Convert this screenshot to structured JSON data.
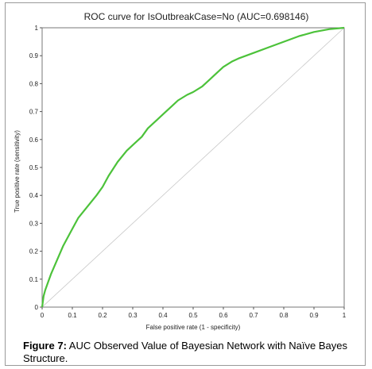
{
  "chart_data": {
    "type": "line",
    "title": "ROC curve for IsOutbreakCase=No (AUC=0.698146)",
    "xlabel": "False positive rate (1 - specificity)",
    "ylabel": "True positive rate (sensitivity)",
    "xlim": [
      0,
      1
    ],
    "ylim": [
      0,
      1
    ],
    "x_ticks": [
      "0",
      "0.1",
      "0.2",
      "0.3",
      "0.4",
      "0.5",
      "0.6",
      "0.7",
      "0.8",
      "0.9",
      "1"
    ],
    "y_ticks": [
      "0",
      "0.1",
      "0.2",
      "0.3",
      "0.4",
      "0.5",
      "0.6",
      "0.7",
      "0.8",
      "0.9",
      "1"
    ],
    "grid": false,
    "legend": "none",
    "series": [
      {
        "color": "#4cc23a",
        "x": [
          0,
          0.005,
          0.01,
          0.02,
          0.03,
          0.05,
          0.07,
          0.1,
          0.12,
          0.15,
          0.18,
          0.2,
          0.22,
          0.25,
          0.28,
          0.3,
          0.33,
          0.35,
          0.38,
          0.4,
          0.43,
          0.45,
          0.48,
          0.5,
          0.53,
          0.55,
          0.58,
          0.6,
          0.63,
          0.65,
          0.7,
          0.75,
          0.8,
          0.85,
          0.9,
          0.95,
          1.0
        ],
        "y": [
          0,
          0.04,
          0.06,
          0.09,
          0.12,
          0.17,
          0.22,
          0.28,
          0.32,
          0.36,
          0.4,
          0.43,
          0.47,
          0.52,
          0.56,
          0.58,
          0.61,
          0.64,
          0.67,
          0.69,
          0.72,
          0.74,
          0.76,
          0.77,
          0.79,
          0.81,
          0.84,
          0.86,
          0.88,
          0.89,
          0.91,
          0.93,
          0.95,
          0.97,
          0.985,
          0.995,
          1.0
        ]
      },
      {
        "color": "#c8c8c8",
        "x": [
          0,
          1
        ],
        "y": [
          0,
          1
        ]
      }
    ]
  },
  "caption": {
    "label": "Figure 7:",
    "text": " AUC Observed Value of Bayesian Network with Naïve Bayes Structure."
  }
}
